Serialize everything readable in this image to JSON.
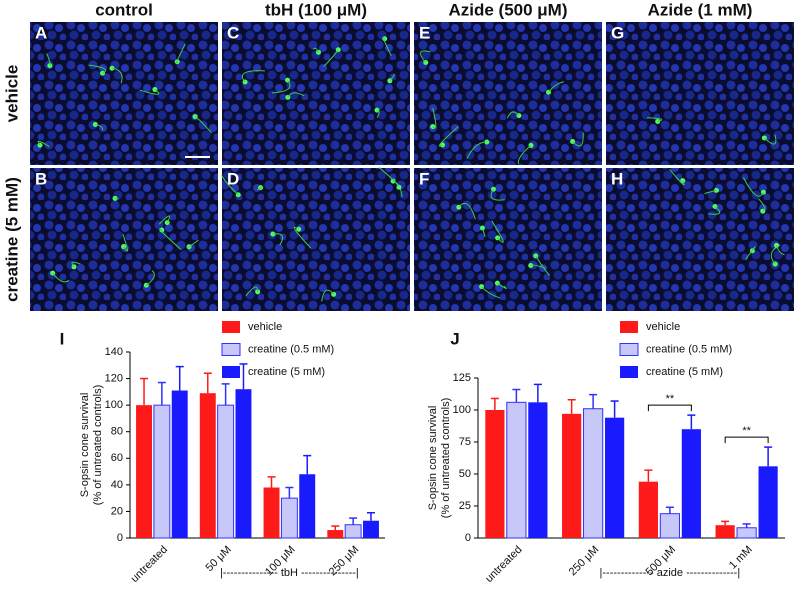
{
  "panels": {
    "columns": [
      "control",
      "tbH (100 μM)",
      "Azide (500 μM)",
      "Azide (1 mM)"
    ],
    "rows": [
      "vehicle",
      "creatine (5 mM)"
    ],
    "letters": [
      [
        "A",
        "C",
        "E",
        "G"
      ],
      [
        "B",
        "D",
        "F",
        "H"
      ]
    ]
  },
  "chart_data": [
    {
      "type": "bar",
      "label": "I",
      "ylabel": [
        "S-opsin cone survival",
        "(% of untreated controls)"
      ],
      "categories": [
        "untreated",
        "50 μM",
        "100 μM",
        "250 μM"
      ],
      "series": [
        {
          "name": "vehicle",
          "color": "#ff1a1a",
          "values": [
            100,
            109,
            38,
            6
          ],
          "errors": [
            20,
            15,
            8,
            3
          ]
        },
        {
          "name": "creatine (0.5 mM)",
          "color": "#c8c8f8",
          "edgecolor": "#3030ff",
          "values": [
            100,
            100,
            30,
            10
          ],
          "errors": [
            17,
            16,
            8,
            5
          ]
        },
        {
          "name": "creatine (5 mM)",
          "color": "#1a1aff",
          "values": [
            111,
            112,
            48,
            13
          ],
          "errors": [
            18,
            19,
            14,
            6
          ]
        }
      ],
      "ylim": [
        0,
        140
      ],
      "yticks": [
        0,
        20,
        40,
        60,
        80,
        100,
        120,
        140
      ],
      "group_label": "|--------------- tbH ---------------|"
    },
    {
      "type": "bar",
      "label": "J",
      "ylabel": [
        "S-opsin cone survival",
        "(% of untreated controls)"
      ],
      "categories": [
        "untreated",
        "250 μM",
        "500 μM",
        "1 mM"
      ],
      "series": [
        {
          "name": "vehicle",
          "color": "#ff1a1a",
          "values": [
            100,
            97,
            44,
            10
          ],
          "errors": [
            9,
            11,
            9,
            3
          ]
        },
        {
          "name": "creatine (0.5 mM)",
          "color": "#c8c8f8",
          "edgecolor": "#3030ff",
          "values": [
            106,
            101,
            19,
            8
          ],
          "errors": [
            10,
            11,
            5,
            3
          ]
        },
        {
          "name": "creatine (5 mM)",
          "color": "#1a1aff",
          "values": [
            106,
            94,
            85,
            56
          ],
          "errors": [
            14,
            13,
            11,
            15
          ]
        }
      ],
      "ylim": [
        0,
        125
      ],
      "yticks": [
        0,
        25,
        50,
        75,
        100,
        125
      ],
      "group_label": "|-------------- azide --------------|",
      "annotations": [
        "**",
        "**"
      ]
    }
  ]
}
